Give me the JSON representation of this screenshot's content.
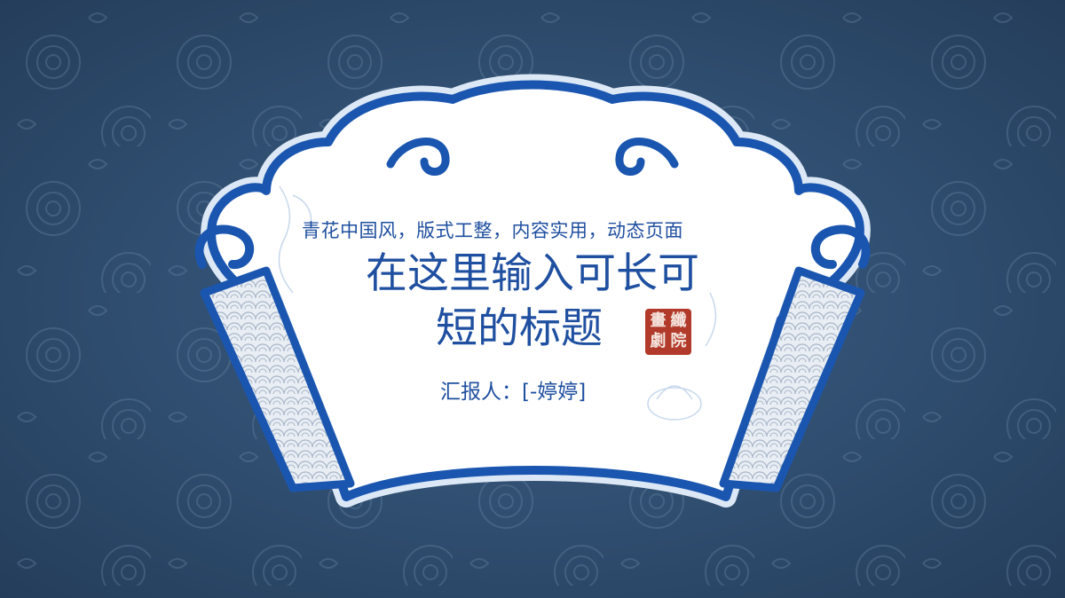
{
  "slide": {
    "subtitle": "青花中国风，版式工整，内容实用，动态页面",
    "title_line1": "在这里输入可长可",
    "title_line2": "短的标题",
    "reporter": "汇报人：[-婷婷]",
    "seal_chars": [
      "畫",
      "纖",
      "劇",
      "院"
    ]
  },
  "colors": {
    "background": "#2f4d6f",
    "scroll_border": "#1a56b0",
    "scroll_fill": "#ffffff",
    "text": "#1f4fa0",
    "seal": "#b23a2a"
  },
  "icons": {
    "seal": "seal-stamp-icon",
    "lotus": "lotus-decoration-icon",
    "cloud": "cloud-scroll-icon"
  }
}
